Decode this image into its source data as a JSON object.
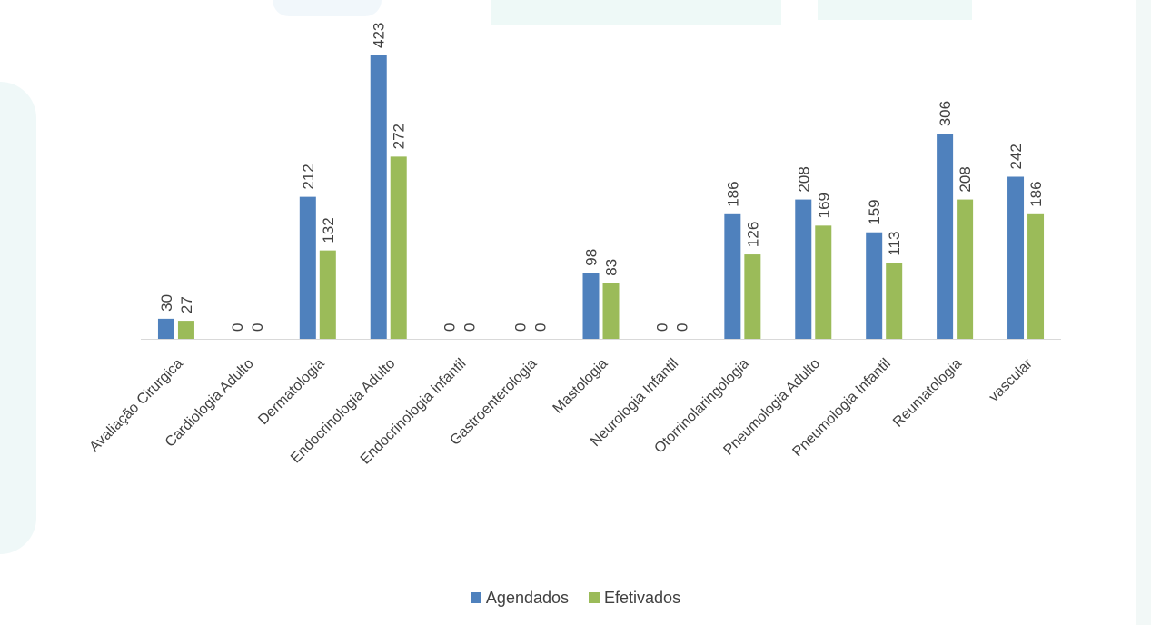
{
  "chart_data": {
    "type": "bar",
    "categories": [
      "Avaliação Cirurgica",
      "Cardiologia Adulto",
      "Dermatologia",
      "Endocrinologia Adulto",
      "Endocrinologia infantil",
      "Gastroenterologia",
      "Mastologia",
      "Neurologia Infantil",
      "Otorrinolaringologia",
      "Pneumologia Adulto",
      "Pneumologia Infantil",
      "Reumatologia",
      "vascular"
    ],
    "series": [
      {
        "name": "Agendados",
        "color": "#4F81BD",
        "values": [
          30,
          0,
          212,
          423,
          0,
          0,
          98,
          0,
          186,
          208,
          159,
          306,
          242
        ]
      },
      {
        "name": "Efetivados",
        "color": "#9BBB59",
        "values": [
          27,
          0,
          132,
          272,
          0,
          0,
          83,
          0,
          126,
          169,
          113,
          208,
          186
        ]
      }
    ],
    "title": "",
    "xlabel": "",
    "ylabel": "",
    "ylim": [
      0,
      423
    ],
    "grid": false,
    "data_labels": true,
    "legend_position": "bottom"
  }
}
